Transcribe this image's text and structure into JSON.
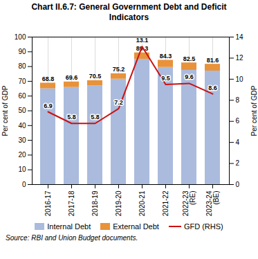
{
  "chart_data": {
    "type": "bar",
    "title": "Chart II.6.7: General Government Debt and Deficit\nIndicators",
    "categories": [
      "2016-17",
      "2017-18",
      "2018-19",
      "2019-20",
      "2020-21",
      "2021-22",
      "2022-23\n(RE)",
      "2023-24\n(BE)"
    ],
    "series": [
      {
        "name": "Internal Debt",
        "type": "bar",
        "color": "#aabbdd",
        "values": [
          65.0,
          65.9,
          67.0,
          71.5,
          85.0,
          79.5,
          77.5,
          77.0
        ]
      },
      {
        "name": "External Debt",
        "type": "bar",
        "color": "#e8923a",
        "values": [
          3.8,
          3.7,
          3.5,
          3.7,
          4.3,
          4.8,
          5.0,
          4.6
        ]
      },
      {
        "name": "GFD (RHS)",
        "type": "line",
        "axis": "y2",
        "color": "#cc1111",
        "data_labels": true,
        "values": [
          6.9,
          5.8,
          5.8,
          7.2,
          13.1,
          9.5,
          9.6,
          8.6
        ]
      }
    ],
    "stack_totals": [
      68.8,
      69.6,
      70.5,
      75.2,
      89.3,
      84.3,
      82.5,
      81.6
    ],
    "stacked": true,
    "ylim": [
      0,
      100
    ],
    "yticks": [
      0,
      10,
      20,
      30,
      40,
      50,
      60,
      70,
      80,
      90,
      100
    ],
    "y2lim": [
      0,
      14
    ],
    "y2ticks": [
      0,
      2,
      4,
      6,
      8,
      10,
      12,
      14
    ],
    "ylabel": "Per cent of GDP",
    "y2label": "Per cent of GDP",
    "grid": true,
    "legend": "bottom",
    "caption": "Source: RBI and Union Budget documents."
  }
}
